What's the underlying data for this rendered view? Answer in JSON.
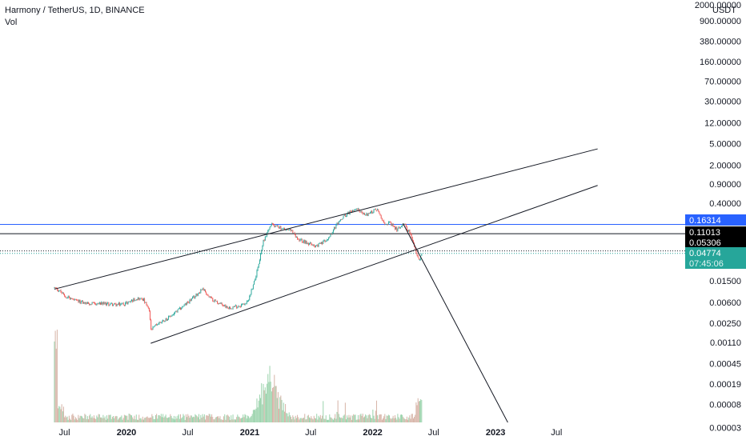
{
  "legend": {
    "symbol_line": "Harmony / TetherUS, 1D, BINANCE",
    "volume_label": "Vol"
  },
  "chart_data": {
    "type": "candlestick",
    "symbol": "Harmony / TetherUS",
    "interval": "1D",
    "exchange": "BINANCE",
    "y_scale": "log",
    "y_unit": "USDT",
    "y_ticks": [
      "2000.00000",
      "900.00000",
      "380.00000",
      "160.00000",
      "70.00000",
      "30.00000",
      "12.00000",
      "5.00000",
      "2.00000",
      "0.90000",
      "0.40000",
      "0.01500",
      "0.00600",
      "0.00250",
      "0.00110",
      "0.00045",
      "0.00019",
      "0.00008",
      "0.00003"
    ],
    "x_ticks": [
      "Jul",
      "2020",
      "Jul",
      "2021",
      "Jul",
      "2022",
      "Jul",
      "2023",
      "Jul"
    ],
    "x_range": [
      "2019-05",
      "2023-10"
    ],
    "price_path": [
      [
        "2019-06-01",
        0.0111
      ],
      [
        "2019-06-10",
        0.0105
      ],
      [
        "2019-07-01",
        0.008
      ],
      [
        "2019-08-01",
        0.0065
      ],
      [
        "2019-09-01",
        0.0058
      ],
      [
        "2019-10-01",
        0.0056
      ],
      [
        "2019-11-01",
        0.0057
      ],
      [
        "2019-12-01",
        0.0054
      ],
      [
        "2020-01-01",
        0.0058
      ],
      [
        "2020-02-01",
        0.0072
      ],
      [
        "2020-02-20",
        0.0068
      ],
      [
        "2020-03-10",
        0.004
      ],
      [
        "2020-03-13",
        0.0018
      ],
      [
        "2020-04-01",
        0.0024
      ],
      [
        "2020-05-01",
        0.003
      ],
      [
        "2020-06-01",
        0.0042
      ],
      [
        "2020-07-01",
        0.006
      ],
      [
        "2020-07-20",
        0.0075
      ],
      [
        "2020-08-15",
        0.011
      ],
      [
        "2020-09-01",
        0.0075
      ],
      [
        "2020-10-01",
        0.0058
      ],
      [
        "2020-11-01",
        0.0048
      ],
      [
        "2020-12-01",
        0.0052
      ],
      [
        "2020-12-25",
        0.006
      ],
      [
        "2021-01-10",
        0.012
      ],
      [
        "2021-01-25",
        0.025
      ],
      [
        "2021-02-10",
        0.08
      ],
      [
        "2021-03-05",
        0.16
      ],
      [
        "2021-03-25",
        0.15
      ],
      [
        "2021-04-15",
        0.13
      ],
      [
        "2021-05-05",
        0.125
      ],
      [
        "2021-05-20",
        0.09
      ],
      [
        "2021-06-20",
        0.075
      ],
      [
        "2021-07-20",
        0.065
      ],
      [
        "2021-08-20",
        0.09
      ],
      [
        "2021-09-10",
        0.14
      ],
      [
        "2021-09-25",
        0.19
      ],
      [
        "2021-10-25",
        0.28
      ],
      [
        "2021-11-20",
        0.3
      ],
      [
        "2021-12-10",
        0.24
      ],
      [
        "2022-01-01",
        0.28
      ],
      [
        "2022-01-15",
        0.32
      ],
      [
        "2022-02-01",
        0.18
      ],
      [
        "2022-02-20",
        0.17
      ],
      [
        "2022-03-15",
        0.13
      ],
      [
        "2022-04-01",
        0.17
      ],
      [
        "2022-04-20",
        0.12
      ],
      [
        "2022-05-10",
        0.05
      ],
      [
        "2022-05-17",
        0.035
      ],
      [
        "2022-05-28",
        0.0477
      ]
    ],
    "volume_profile": {
      "pane": "bottom",
      "peak_date": "2019-06-05",
      "secondary_peak": "2021-03-01"
    },
    "trendlines": [
      {
        "name": "upper-channel",
        "from": [
          "2019-06-01",
          0.0105
        ],
        "to": [
          "2023-10-31",
          4.0
        ]
      },
      {
        "name": "lower-channel",
        "from": [
          "2020-03-13",
          0.00106
        ],
        "to": [
          "2023-10-31",
          0.85
        ]
      },
      {
        "name": "descending-line",
        "from": [
          "2022-04-01",
          0.17
        ],
        "to": [
          "2023-03-01",
          2e-05
        ]
      }
    ],
    "horizontal_lines": [
      {
        "name": "blue-level",
        "value": 0.16314,
        "color": "#2962ff"
      },
      {
        "name": "black-level",
        "value": 0.11013,
        "color": "#131722"
      }
    ],
    "price_tags": [
      {
        "value": "0.16314",
        "bg": "#2962ff",
        "fg": "#ffffff"
      },
      {
        "value": "0.11013",
        "bg": "#000000",
        "fg": "#ffffff"
      },
      {
        "value": "0.05306",
        "bg": "#000000",
        "fg": "#ffffff"
      },
      {
        "value": "0.04774",
        "bg": "#26a69a",
        "fg": "#ffffff"
      }
    ],
    "countdown": "07:45:06",
    "last_price": 0.04774,
    "colors": {
      "up": "#26a69a",
      "down": "#ef5350",
      "vol_up": "#9bd3ac",
      "vol_down": "#d6b3a6",
      "line": "#131722"
    }
  }
}
